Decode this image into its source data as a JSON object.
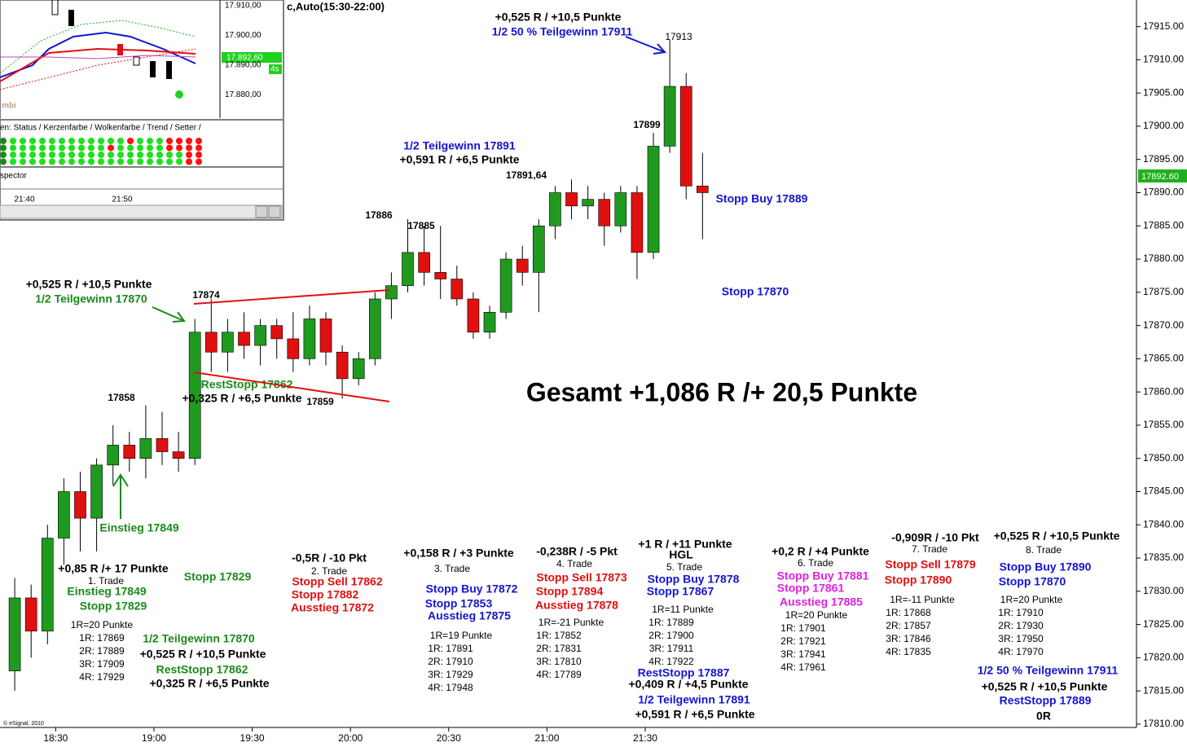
{
  "chart_data": {
    "type": "candlestick",
    "header": "c,Auto(15:30-22:00)",
    "copyright": "© eSignal, 2010",
    "last_price": "17892.60",
    "x": [
      "18:15",
      "18:20",
      "18:25",
      "18:30",
      "18:35",
      "18:40",
      "18:45",
      "18:50",
      "18:55",
      "19:00",
      "19:05",
      "19:10",
      "19:15",
      "19:20",
      "19:25",
      "19:30",
      "19:35",
      "19:40",
      "19:45",
      "19:50",
      "19:55",
      "20:00",
      "20:05",
      "20:10",
      "20:15",
      "20:20",
      "20:25",
      "20:30",
      "20:35",
      "20:40",
      "20:45",
      "20:50",
      "20:55",
      "21:00",
      "21:05",
      "21:10",
      "21:15",
      "21:20",
      "21:25",
      "21:30",
      "21:35",
      "21:40",
      "21:45"
    ],
    "open": [
      17818,
      17829,
      17824,
      17838,
      17845,
      17841,
      17849,
      17852,
      17850,
      17853,
      17851,
      17850,
      17869,
      17866,
      17869,
      17867,
      17870,
      17868,
      17865,
      17871,
      17866,
      17862,
      17865,
      17874,
      17876,
      17881,
      17878,
      17877,
      17874,
      17869,
      17872,
      17880,
      17878,
      17885,
      17890,
      17888,
      17889,
      17885,
      17890,
      17881,
      17897,
      17906,
      17891
    ],
    "high": [
      17832,
      17831,
      17840,
      17847,
      17848,
      17850,
      17855,
      17854,
      17858,
      17857,
      17854,
      17871,
      17874,
      17871,
      17872,
      17871,
      17871,
      17872,
      17873,
      17872,
      17867,
      17866,
      17875,
      17878,
      17886,
      17885,
      17885,
      17879,
      17875,
      17873,
      17881,
      17882,
      17886,
      17891,
      17892,
      17891,
      17890,
      17891,
      17891,
      17899,
      17913,
      17908,
      17896
    ],
    "low": [
      17815,
      17820,
      17822,
      17834,
      17836,
      17836,
      17846,
      17848,
      17847,
      17849,
      17848,
      17849,
      17863,
      17863,
      17865,
      17864,
      17865,
      17863,
      17864,
      17864,
      17859,
      17861,
      17864,
      17871,
      17875,
      17876,
      17874,
      17873,
      17868,
      17868,
      17871,
      17876,
      17872,
      17883,
      17886,
      17886,
      17882,
      17884,
      17877,
      17880,
      17896,
      17889,
      17883
    ],
    "close": [
      17829,
      17824,
      17838,
      17845,
      17841,
      17849,
      17852,
      17850,
      17853,
      17851,
      17850,
      17869,
      17866,
      17869,
      17867,
      17870,
      17868,
      17865,
      17871,
      17866,
      17862,
      17865,
      17874,
      17876,
      17881,
      17878,
      17877,
      17874,
      17869,
      17872,
      17880,
      17878,
      17885,
      17890,
      17888,
      17889,
      17885,
      17890,
      17881,
      17897,
      17906,
      17891,
      17890
    ],
    "up_color": "#1f9a1f",
    "down_color": "#e01010",
    "xlim": [
      "18:13",
      "24:00"
    ],
    "xticks": [
      "18:30",
      "19:00",
      "19:30",
      "20:00",
      "20:30",
      "21:00",
      "21:30"
    ],
    "ylim": [
      17809.5,
      17919
    ],
    "yticks": [
      {
        "value": 17810,
        "label": "17810.00"
      },
      {
        "value": 17815,
        "label": "17815.00"
      },
      {
        "value": 17820,
        "label": "17820.00"
      },
      {
        "value": 17825,
        "label": "17825.00"
      },
      {
        "value": 17830,
        "label": "17830.00"
      },
      {
        "value": 17835,
        "label": "17835.00"
      },
      {
        "value": 17840,
        "label": "17840.00"
      },
      {
        "value": 17845,
        "label": "17845.00"
      },
      {
        "value": 17850,
        "label": "17850.00"
      },
      {
        "value": 17855,
        "label": "17855.00"
      },
      {
        "value": 17860,
        "label": "17860.00"
      },
      {
        "value": 17865,
        "label": "17865.00"
      },
      {
        "value": 17870,
        "label": "17870.00"
      },
      {
        "value": 17875,
        "label": "17875.00"
      },
      {
        "value": 17880,
        "label": "17880.00"
      },
      {
        "value": 17885,
        "label": "17885.00"
      },
      {
        "value": 17890,
        "label": "17890.00"
      },
      {
        "value": 17895,
        "label": "17895.00"
      },
      {
        "value": 17900,
        "label": "17900.00"
      },
      {
        "value": 17905,
        "label": "17905.00"
      },
      {
        "value": 17910,
        "label": "17910.00"
      },
      {
        "value": 17915,
        "label": "17915.00"
      }
    ],
    "annotations": [
      {
        "text": "+0,525 R / +10,5 Punkte",
        "color": "#000000"
      },
      {
        "text": "1/2 50 % Teilgewinn 17911",
        "color": "#1414d2"
      },
      {
        "text": "17913",
        "color": "#000000"
      },
      {
        "text": "17899",
        "color": "#000000"
      },
      {
        "text": "1/2 Teilgewinn 17891",
        "color": "#1414d2"
      },
      {
        "text": "+0,591 R / +6,5 Punkte",
        "color": "#000000"
      },
      {
        "text": "17891,64",
        "color": "#000000"
      },
      {
        "text": "Stopp Buy 17889",
        "color": "#1414d2"
      },
      {
        "text": "Stopp 17870",
        "color": "#1414d2"
      },
      {
        "text": "17886",
        "color": "#000000"
      },
      {
        "text": "17885",
        "color": "#000000"
      },
      {
        "text": "+0,525 R / +10,5 Punkte",
        "color": "#000000"
      },
      {
        "text": "1/2 Teilgewinn 17870",
        "color": "#1a8a1a"
      },
      {
        "text": "17874",
        "color": "#000000"
      },
      {
        "text": "RestStopp 17862",
        "color": "#1a8a1a"
      },
      {
        "text": "+0,325 R / +6,5 Punkte",
        "color": "#000000"
      },
      {
        "text": "17859",
        "color": "#000000"
      },
      {
        "text": "17858",
        "color": "#000000"
      },
      {
        "text": "Gesamt +1,086 R /+ 20,5 Punkte",
        "color": "#000000"
      },
      {
        "text": "Einstieg 17849",
        "color": "#1a8a1a"
      },
      {
        "text": "Stopp 17829",
        "color": "#1a8a1a"
      },
      {
        "text": "+0,85 R /+ 17 Punkte",
        "color": "#000000"
      },
      {
        "text": "1. Trade",
        "color": "#000000"
      },
      {
        "text": "Einstieg 17849",
        "color": "#1a8a1a"
      },
      {
        "text": "Stopp 17829",
        "color": "#1a8a1a"
      },
      {
        "text": "1R=20 Punkte",
        "color": "#000000"
      },
      {
        "text": "1R: 17869",
        "color": "#000000"
      },
      {
        "text": "2R: 17889",
        "color": "#000000"
      },
      {
        "text": "3R: 17909",
        "color": "#000000"
      },
      {
        "text": "4R: 17929",
        "color": "#000000"
      },
      {
        "text": "1/2 Teilgewinn 17870",
        "color": "#1a8a1a"
      },
      {
        "text": "+0,525 R / +10,5 Punkte",
        "color": "#000000"
      },
      {
        "text": "RestStopp 17862",
        "color": "#1a8a1a"
      },
      {
        "text": "+0,325 R / +6,5 Punkte",
        "color": "#000000"
      },
      {
        "text": "-0,5R / -10 Pkt",
        "color": "#000000"
      },
      {
        "text": "2. Trade",
        "color": "#000000"
      },
      {
        "text": "Stopp Sell 17862",
        "color": "#e01010"
      },
      {
        "text": "Stopp 17882",
        "color": "#e01010"
      },
      {
        "text": "Ausstieg 17872",
        "color": "#e01010"
      },
      {
        "text": "+0,158 R / +3 Punkte",
        "color": "#000000"
      },
      {
        "text": "3. Trade",
        "color": "#000000"
      },
      {
        "text": "Stopp Buy 17872",
        "color": "#1414d2"
      },
      {
        "text": "Stopp 17853",
        "color": "#1414d2"
      },
      {
        "text": "Ausstieg 17875",
        "color": "#1414d2"
      },
      {
        "text": "1R=19 Punkte",
        "color": "#000000"
      },
      {
        "text": "1R: 17891",
        "color": "#000000"
      },
      {
        "text": "2R: 17910",
        "color": "#000000"
      },
      {
        "text": "3R: 17929",
        "color": "#000000"
      },
      {
        "text": "4R: 17948",
        "color": "#000000"
      },
      {
        "text": "-0,238R / -5 Pkt",
        "color": "#000000"
      },
      {
        "text": "4. Trade",
        "color": "#000000"
      },
      {
        "text": "Stopp Sell 17873",
        "color": "#e01010"
      },
      {
        "text": "Stopp 17894",
        "color": "#e01010"
      },
      {
        "text": "Ausstieg 17878",
        "color": "#e01010"
      },
      {
        "text": "1R=-21 Punkte",
        "color": "#000000"
      },
      {
        "text": "1R: 17852",
        "color": "#000000"
      },
      {
        "text": "2R: 17831",
        "color": "#000000"
      },
      {
        "text": "3R: 17810",
        "color": "#000000"
      },
      {
        "text": "4R: 17789",
        "color": "#000000"
      },
      {
        "text": "+1 R / +11 Punkte",
        "color": "#000000"
      },
      {
        "text": "HGL",
        "color": "#000000"
      },
      {
        "text": "5. Trade",
        "color": "#000000"
      },
      {
        "text": "Stopp Buy 17878",
        "color": "#1414d2"
      },
      {
        "text": "Stopp 17867",
        "color": "#1414d2"
      },
      {
        "text": "1R=11 Punkte",
        "color": "#000000"
      },
      {
        "text": "1R: 17889",
        "color": "#000000"
      },
      {
        "text": "2R: 17900",
        "color": "#000000"
      },
      {
        "text": "3R: 17911",
        "color": "#000000"
      },
      {
        "text": "4R: 17922",
        "color": "#000000"
      },
      {
        "text": "RestStopp 17887",
        "color": "#1414d2"
      },
      {
        "text": "+0,409 R / +4,5 Punkte",
        "color": "#000000"
      },
      {
        "text": "1/2 Teilgewinn 17891",
        "color": "#1414d2"
      },
      {
        "text": "+0,591 R / +6,5 Punkte",
        "color": "#000000"
      },
      {
        "text": "+0,2 R / +4 Punkte",
        "color": "#000000"
      },
      {
        "text": "6. Trade",
        "color": "#000000"
      },
      {
        "text": "Stopp Buy 17881",
        "color": "#e020e0"
      },
      {
        "text": "Stopp 17861",
        "color": "#e020e0"
      },
      {
        "text": "Ausstieg 17885",
        "color": "#e020e0"
      },
      {
        "text": "1R=20 Punkte",
        "color": "#000000"
      },
      {
        "text": "1R: 17901",
        "color": "#000000"
      },
      {
        "text": "2R: 17921",
        "color": "#000000"
      },
      {
        "text": "3R: 17941",
        "color": "#000000"
      },
      {
        "text": "4R: 17961",
        "color": "#000000"
      },
      {
        "text": "-0,909R / -10 Pkt",
        "color": "#000000"
      },
      {
        "text": "7. Trade",
        "color": "#000000"
      },
      {
        "text": "Stopp Sell 17879",
        "color": "#e01010"
      },
      {
        "text": "Stopp 17890",
        "color": "#e01010"
      },
      {
        "text": "1R=-11 Punkte",
        "color": "#000000"
      },
      {
        "text": "1R: 17868",
        "color": "#000000"
      },
      {
        "text": "2R: 17857",
        "color": "#000000"
      },
      {
        "text": "3R: 17846",
        "color": "#000000"
      },
      {
        "text": "4R: 17835",
        "color": "#000000"
      },
      {
        "text": "+0,525 R / +10,5 Punkte",
        "color": "#000000"
      },
      {
        "text": "8. Trade",
        "color": "#000000"
      },
      {
        "text": "Stopp Buy 17890",
        "color": "#1414d2"
      },
      {
        "text": "Stopp 17870",
        "color": "#1414d2"
      },
      {
        "text": "1R=20 Punkte",
        "color": "#000000"
      },
      {
        "text": "1R: 17910",
        "color": "#000000"
      },
      {
        "text": "2R: 17930",
        "color": "#000000"
      },
      {
        "text": "3R: 17950",
        "color": "#000000"
      },
      {
        "text": "4R: 17970",
        "color": "#000000"
      },
      {
        "text": "1/2 50 % Teilgewinn 17911",
        "color": "#1414d2"
      },
      {
        "text": "+0,525 R / +10,5 Punkte",
        "color": "#000000"
      },
      {
        "text": "RestStopp 17889",
        "color": "#1414d2"
      },
      {
        "text": "0R",
        "color": "#000000"
      }
    ]
  },
  "inset": {
    "prices": [
      "17.910,00",
      "17.900,00",
      "17.890,00",
      "17.880,00"
    ],
    "last": "17.892,60",
    "interval": "4s",
    "study": "mbi",
    "legend": "en: Status / Kerzenfarbe / Wolkenfarbe / Trend / Setter /",
    "panel": "spector",
    "times": [
      "21:40",
      "21:50"
    ]
  }
}
